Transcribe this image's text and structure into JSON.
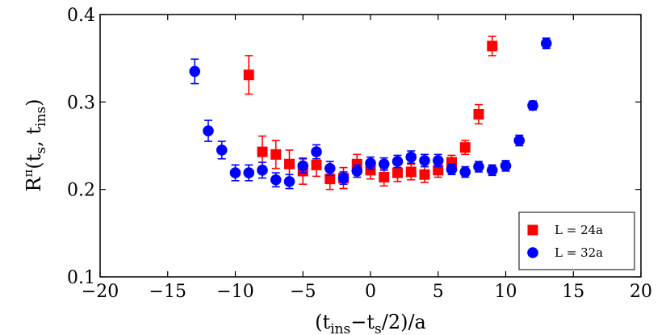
{
  "chart_data": {
    "type": "scatter",
    "title": "",
    "xlabel": "(t_ins−t_s/2)/a",
    "ylabel": "R^π(t_s, t_ins)",
    "xlim": [
      -20,
      20
    ],
    "ylim": [
      0.1,
      0.4
    ],
    "xticks": [
      "−20",
      "−15",
      "−10",
      "−5",
      "0",
      "5",
      "10",
      "15",
      "20"
    ],
    "yticks": [
      "0.1",
      "0.2",
      "0.3",
      "0.4"
    ],
    "grid": false,
    "legend_position": "bottom-right",
    "series": [
      {
        "name": "L = 24a",
        "marker": "square",
        "color": "#ff0000",
        "x": [
          -9,
          -8,
          -7,
          -6,
          -5,
          -4,
          -3,
          -2,
          -1,
          0,
          1,
          2,
          3,
          4,
          5,
          6,
          7,
          8,
          9
        ],
        "y": [
          0.331,
          0.243,
          0.24,
          0.229,
          0.221,
          0.228,
          0.212,
          0.213,
          0.229,
          0.222,
          0.214,
          0.219,
          0.22,
          0.217,
          0.222,
          0.231,
          0.248,
          0.286,
          0.364
        ],
        "err": [
          0.022,
          0.018,
          0.016,
          0.016,
          0.015,
          0.013,
          0.012,
          0.012,
          0.011,
          0.01,
          0.01,
          0.01,
          0.009,
          0.009,
          0.008,
          0.008,
          0.008,
          0.011,
          0.011
        ]
      },
      {
        "name": "L = 32a",
        "marker": "circle",
        "color": "#0000ff",
        "x": [
          -13,
          -12,
          -11,
          -10,
          -9,
          -8,
          -7,
          -6,
          -5,
          -4,
          -3,
          -2,
          -1,
          0,
          1,
          2,
          3,
          4,
          5,
          6,
          7,
          8,
          9,
          10,
          11,
          12,
          13
        ],
        "y": [
          0.335,
          0.267,
          0.245,
          0.219,
          0.219,
          0.222,
          0.211,
          0.209,
          0.227,
          0.243,
          0.224,
          0.213,
          0.221,
          0.23,
          0.229,
          0.232,
          0.237,
          0.233,
          0.233,
          0.223,
          0.22,
          0.226,
          0.222,
          0.227,
          0.256,
          0.296,
          0.367
        ],
        "err": [
          0.014,
          0.012,
          0.01,
          0.009,
          0.009,
          0.009,
          0.008,
          0.008,
          0.008,
          0.008,
          0.008,
          0.007,
          0.007,
          0.007,
          0.007,
          0.007,
          0.007,
          0.007,
          0.007,
          0.006,
          0.006,
          0.006,
          0.006,
          0.006,
          0.006,
          0.005,
          0.006
        ]
      }
    ]
  }
}
